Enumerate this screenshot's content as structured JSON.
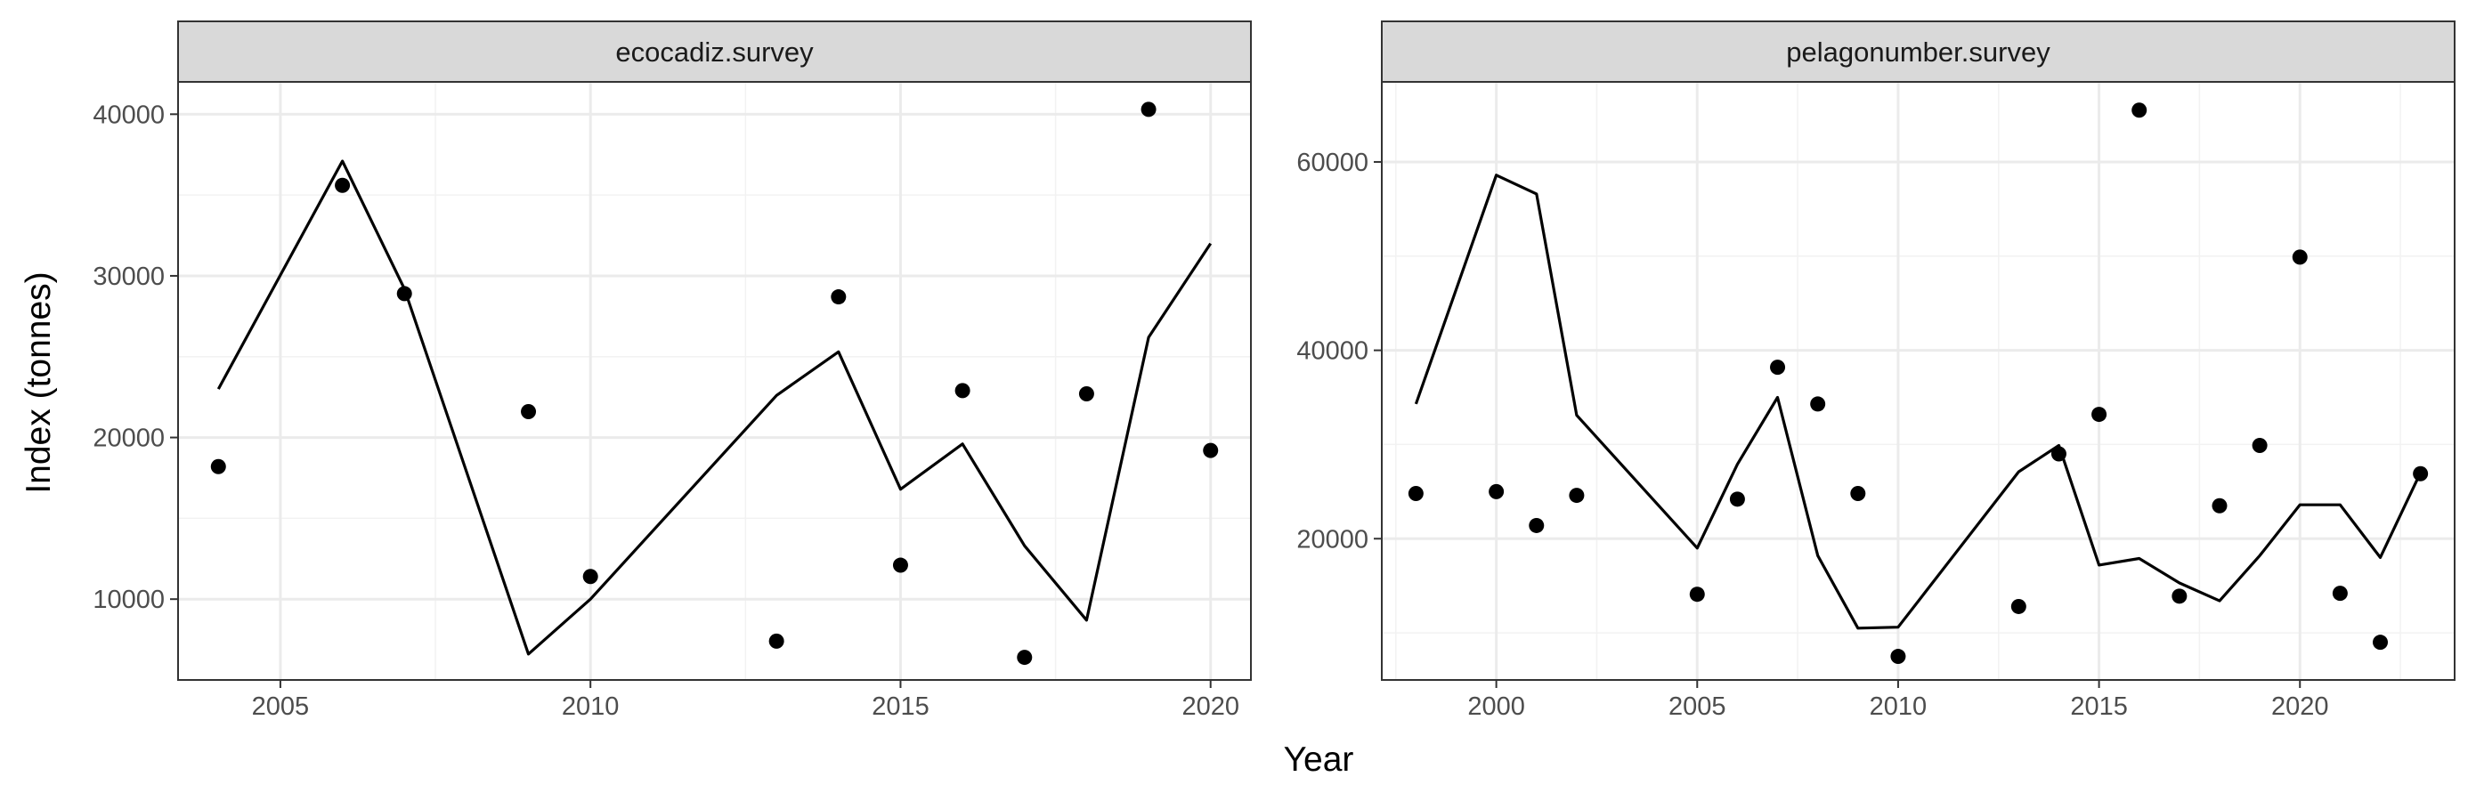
{
  "x_axis_title": "Year",
  "y_axis_title": "Index (tonnes)",
  "chart_data": [
    {
      "type": "line",
      "panel": "ecocadiz.survey",
      "xlim": [
        2003.35,
        2020.65
      ],
      "ylim": [
        5000,
        42000
      ],
      "x_ticks": [
        2005,
        2010,
        2015,
        2020
      ],
      "y_ticks": [
        10000,
        20000,
        30000,
        40000
      ],
      "grid": true,
      "series": [
        {
          "kind": "points",
          "x": [
            2004,
            2006,
            2007,
            2009,
            2010,
            2013,
            2014,
            2015,
            2016,
            2017,
            2018,
            2019,
            2020
          ],
          "values": [
            18200,
            35600,
            28900,
            21600,
            11400,
            7400,
            28700,
            12100,
            22900,
            6400,
            22700,
            40300,
            19200
          ]
        },
        {
          "kind": "line",
          "x": [
            2004,
            2006,
            2007,
            2009,
            2010,
            2013,
            2014,
            2015,
            2016,
            2017,
            2018,
            2019,
            2020
          ],
          "values": [
            23000,
            37100,
            29200,
            6600,
            10000,
            22600,
            25300,
            16800,
            19600,
            13300,
            8700,
            26200,
            32000
          ]
        }
      ]
    },
    {
      "type": "line",
      "panel": "pelagonumber.survey",
      "xlim": [
        1997.15,
        2023.85
      ],
      "ylim": [
        5000,
        68500
      ],
      "x_ticks": [
        2000,
        2005,
        2010,
        2015,
        2020
      ],
      "y_ticks": [
        20000,
        40000,
        60000
      ],
      "grid": true,
      "series": [
        {
          "kind": "points",
          "x": [
            1998,
            2000,
            2001,
            2002,
            2005,
            2006,
            2007,
            2008,
            2009,
            2010,
            2013,
            2014,
            2015,
            2016,
            2017,
            2018,
            2019,
            2020,
            2021,
            2022,
            2023
          ],
          "values": [
            24800,
            25000,
            21400,
            24600,
            14100,
            24200,
            38200,
            34300,
            24800,
            7500,
            12800,
            29000,
            33200,
            65500,
            13900,
            23500,
            29900,
            49900,
            14200,
            9000,
            26900
          ]
        },
        {
          "kind": "line",
          "x": [
            1998,
            2000,
            2001,
            2002,
            2005,
            2006,
            2007,
            2008,
            2009,
            2010,
            2013,
            2014,
            2015,
            2016,
            2017,
            2018,
            2019,
            2020,
            2021,
            2022,
            2023
          ],
          "values": [
            34300,
            58600,
            56600,
            33100,
            19000,
            27900,
            35000,
            18200,
            10500,
            10600,
            27100,
            29900,
            17200,
            17900,
            15300,
            13400,
            18200,
            23600,
            23600,
            18000,
            27000
          ]
        }
      ]
    }
  ]
}
